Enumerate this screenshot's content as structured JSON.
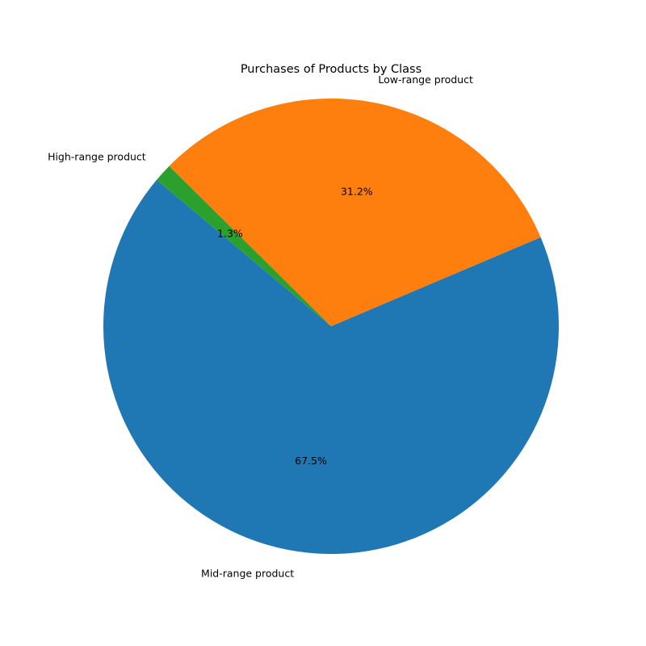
{
  "chart_data": {
    "type": "pie",
    "title": "Purchases of Products by Class",
    "slices": [
      {
        "label": "Mid-range product",
        "value": 67.5,
        "pct_label": "67.5%",
        "color": "#1f77b4"
      },
      {
        "label": "Low-range product",
        "value": 31.2,
        "pct_label": "31.2%",
        "color": "#ff7f0e"
      },
      {
        "label": "High-range product",
        "value": 1.3,
        "pct_label": "1.3%",
        "color": "#2ca02c"
      }
    ],
    "start_angle_deg": 140,
    "direction": "counterclockwise",
    "legend": "none"
  }
}
